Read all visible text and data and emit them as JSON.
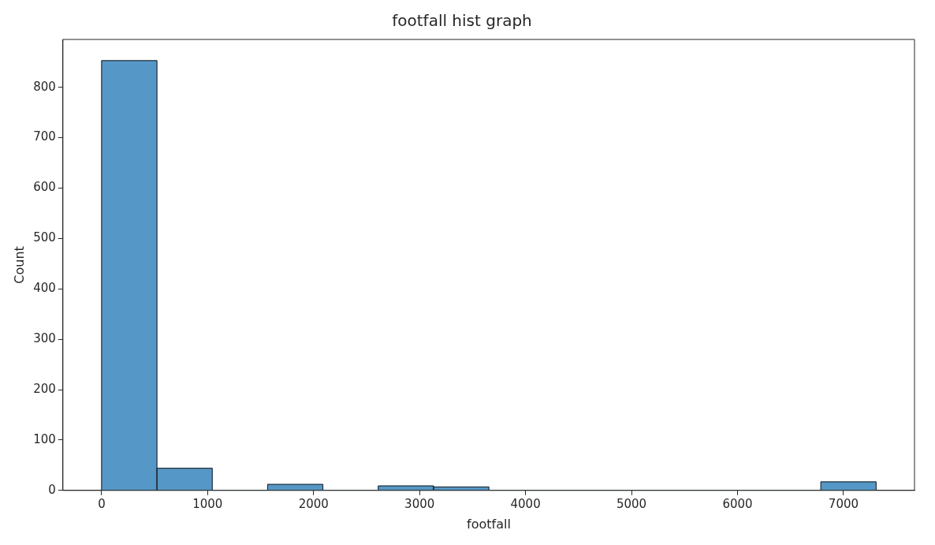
{
  "chart_data": {
    "type": "histogram",
    "title": "footfall hist graph",
    "xlabel": "footfall",
    "ylabel": "Count",
    "bins": [
      0,
      522,
      1044,
      1566,
      2088,
      2610,
      3132,
      3654,
      4176,
      4698,
      5220,
      5742,
      6264,
      6786,
      7308
    ],
    "values": [
      853,
      44,
      0,
      12,
      0,
      9,
      7,
      0,
      0,
      0,
      0,
      0,
      0,
      17
    ],
    "color": "#5597c6",
    "xlim": [
      -365,
      7670
    ],
    "xticks": [
      0,
      1000,
      2000,
      3000,
      4000,
      5000,
      6000,
      7000
    ],
    "ylim": [
      0,
      895
    ],
    "yticks": [
      0,
      100,
      200,
      300,
      400,
      500,
      600,
      700,
      800
    ],
    "grid": false,
    "legend": false
  }
}
